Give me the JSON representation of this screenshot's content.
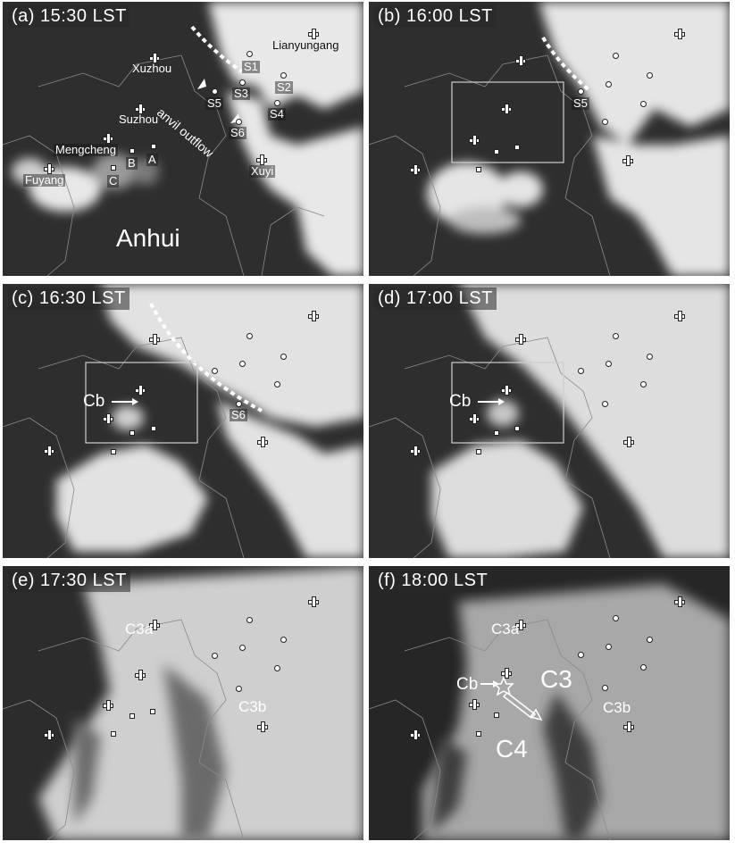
{
  "panels": [
    {
      "title": "(a) 15:30 LST",
      "labels": {
        "lianyungang": "Lianyungang",
        "xuzhou": "Xuzhou",
        "suzhou": "Suzhou",
        "mengcheng": "Mengcheng",
        "fuyang": "Fuyang",
        "xuyi": "Xuyi",
        "anhui": "Anhui",
        "anvil_outflow": "anvil outflow",
        "s1": "S1",
        "s2": "S2",
        "s3": "S3",
        "s4": "S4",
        "s5": "S5",
        "s6": "S6",
        "a": "A",
        "b": "B",
        "c": "C"
      }
    },
    {
      "title": "(b) 16:00 LST",
      "labels": {
        "s5": "S5"
      }
    },
    {
      "title": "(c) 16:30 LST",
      "labels": {
        "cb": "Cb",
        "s6": "S6"
      }
    },
    {
      "title": "(d) 17:00 LST",
      "labels": {
        "cb": "Cb"
      }
    },
    {
      "title": "(e) 17:30 LST",
      "labels": {
        "c3a": "C3a",
        "c3b": "C3b"
      }
    },
    {
      "title": "(f) 18:00 LST",
      "labels": {
        "c3a": "C3a",
        "c3": "C3",
        "cb": "Cb",
        "c3b": "C3b",
        "c4": "C4"
      }
    }
  ],
  "colors": {
    "clear_sky": "#2b2b2b",
    "cloud": "#e6e6e6",
    "outflow_line": "#ffffff"
  },
  "icons": {
    "station_circle": "circle-marker",
    "station_square": "square-marker",
    "city": "plus-marker",
    "anvil_arrow": "arrow-icon"
  }
}
